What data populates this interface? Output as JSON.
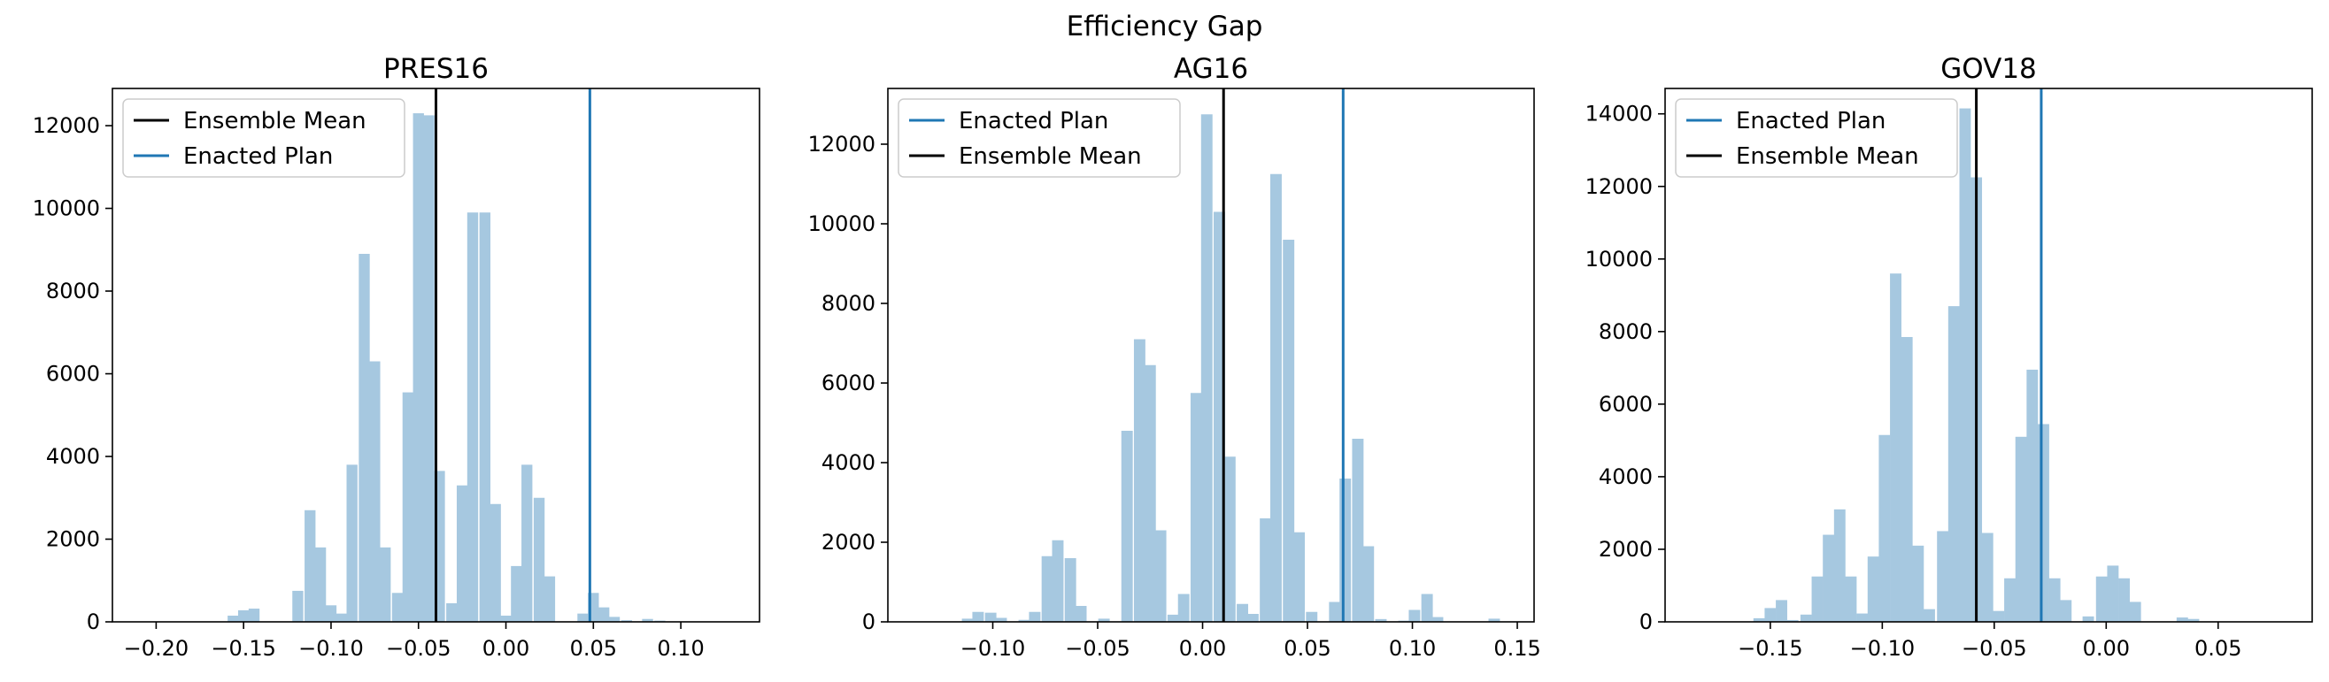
{
  "suptitle": "Efficiency Gap",
  "colors": {
    "hist": "#a6c8e0",
    "enacted": "#1f77b4",
    "mean": "#000000"
  },
  "chart_data": [
    {
      "type": "bar",
      "title": "PRES16",
      "xlim": [
        -0.225,
        0.145
      ],
      "ylim": [
        0,
        12900
      ],
      "xticks": [
        {
          "value": -0.2,
          "label": "−0.20"
        },
        {
          "value": -0.15,
          "label": "−0.15"
        },
        {
          "value": -0.1,
          "label": "−0.10"
        },
        {
          "value": -0.05,
          "label": "−0.05"
        },
        {
          "value": 0.0,
          "label": "0.00"
        },
        {
          "value": 0.05,
          "label": "0.05"
        },
        {
          "value": 0.1,
          "label": "0.10"
        }
      ],
      "yticks": [
        0,
        2000,
        4000,
        6000,
        8000,
        10000,
        12000
      ],
      "legend": [
        "Ensemble Mean",
        "Enacted Plan"
      ],
      "legend_position": "upper left",
      "ensemble_mean": -0.04,
      "enacted": 0.048,
      "bin_width": 0.00625,
      "bins": [
        [
          -0.156,
          150
        ],
        [
          -0.15,
          280
        ],
        [
          -0.144,
          320
        ],
        [
          -0.119,
          750
        ],
        [
          -0.112,
          2700
        ],
        [
          -0.106,
          1800
        ],
        [
          -0.1,
          400
        ],
        [
          -0.094,
          200
        ],
        [
          -0.088,
          3800
        ],
        [
          -0.081,
          8900
        ],
        [
          -0.075,
          6300
        ],
        [
          -0.069,
          1800
        ],
        [
          -0.062,
          700
        ],
        [
          -0.056,
          5550
        ],
        [
          -0.05,
          12300
        ],
        [
          -0.044,
          12250
        ],
        [
          -0.038,
          3650
        ],
        [
          -0.031,
          450
        ],
        [
          -0.025,
          3300
        ],
        [
          -0.019,
          9900
        ],
        [
          -0.012,
          9900
        ],
        [
          -0.006,
          2850
        ],
        [
          0.0,
          150
        ],
        [
          0.006,
          1350
        ],
        [
          0.012,
          3800
        ],
        [
          0.019,
          3000
        ],
        [
          0.025,
          1100
        ],
        [
          0.031,
          0
        ],
        [
          0.044,
          200
        ],
        [
          0.05,
          700
        ],
        [
          0.056,
          350
        ],
        [
          0.062,
          120
        ],
        [
          0.069,
          40
        ],
        [
          0.081,
          70
        ],
        [
          0.088,
          30
        ]
      ]
    },
    {
      "type": "bar",
      "title": "AG16",
      "xlim": [
        -0.15,
        0.158
      ],
      "ylim": [
        0,
        13400
      ],
      "xticks": [
        {
          "value": -0.1,
          "label": "−0.10"
        },
        {
          "value": -0.05,
          "label": "−0.05"
        },
        {
          "value": 0.0,
          "label": "0.00"
        },
        {
          "value": 0.05,
          "label": "0.05"
        },
        {
          "value": 0.1,
          "label": "0.10"
        },
        {
          "value": 0.15,
          "label": "0.15"
        }
      ],
      "yticks": [
        0,
        2000,
        4000,
        6000,
        8000,
        10000,
        12000
      ],
      "legend": [
        "Enacted Plan",
        "Ensemble Mean"
      ],
      "legend_position": "upper left",
      "ensemble_mean": 0.01,
      "enacted": 0.067,
      "bin_width": 0.00545,
      "bins": [
        [
          -0.112,
          80
        ],
        [
          -0.107,
          250
        ],
        [
          -0.101,
          230
        ],
        [
          -0.096,
          100
        ],
        [
          -0.085,
          50
        ],
        [
          -0.08,
          250
        ],
        [
          -0.074,
          1650
        ],
        [
          -0.069,
          2050
        ],
        [
          -0.063,
          1600
        ],
        [
          -0.058,
          400
        ],
        [
          -0.047,
          80
        ],
        [
          -0.036,
          4800
        ],
        [
          -0.03,
          7100
        ],
        [
          -0.025,
          6450
        ],
        [
          -0.02,
          2300
        ],
        [
          -0.014,
          180
        ],
        [
          -0.009,
          700
        ],
        [
          -0.003,
          5750
        ],
        [
          0.002,
          12750
        ],
        [
          0.008,
          10300
        ],
        [
          0.013,
          4150
        ],
        [
          0.019,
          450
        ],
        [
          0.024,
          200
        ],
        [
          0.03,
          2600
        ],
        [
          0.035,
          11250
        ],
        [
          0.041,
          9600
        ],
        [
          0.046,
          2250
        ],
        [
          0.052,
          250
        ],
        [
          0.063,
          500
        ],
        [
          0.068,
          3600
        ],
        [
          0.074,
          4600
        ],
        [
          0.079,
          1900
        ],
        [
          0.085,
          70
        ],
        [
          0.096,
          30
        ],
        [
          0.101,
          300
        ],
        [
          0.107,
          700
        ],
        [
          0.112,
          120
        ],
        [
          0.139,
          80
        ]
      ]
    },
    {
      "type": "bar",
      "title": "GOV18",
      "xlim": [
        -0.197,
        0.092
      ],
      "ylim": [
        0,
        14700
      ],
      "xticks": [
        {
          "value": -0.15,
          "label": "−0.15"
        },
        {
          "value": -0.1,
          "label": "−0.10"
        },
        {
          "value": -0.05,
          "label": "−0.05"
        },
        {
          "value": 0.0,
          "label": "0.00"
        },
        {
          "value": 0.05,
          "label": "0.05"
        }
      ],
      "yticks": [
        0,
        2000,
        4000,
        6000,
        8000,
        10000,
        12000,
        14000
      ],
      "legend": [
        "Enacted Plan",
        "Ensemble Mean"
      ],
      "legend_position": "upper left",
      "ensemble_mean": -0.058,
      "enacted": -0.029,
      "bin_width": 0.0051,
      "bins": [
        [
          -0.155,
          100
        ],
        [
          -0.15,
          380
        ],
        [
          -0.145,
          600
        ],
        [
          -0.14,
          50
        ],
        [
          -0.134,
          200
        ],
        [
          -0.129,
          1250
        ],
        [
          -0.124,
          2400
        ],
        [
          -0.119,
          3100
        ],
        [
          -0.114,
          1250
        ],
        [
          -0.109,
          230
        ],
        [
          -0.104,
          1800
        ],
        [
          -0.099,
          5150
        ],
        [
          -0.094,
          9600
        ],
        [
          -0.089,
          7850
        ],
        [
          -0.084,
          2100
        ],
        [
          -0.079,
          350
        ],
        [
          -0.073,
          2500
        ],
        [
          -0.068,
          8700
        ],
        [
          -0.063,
          14150
        ],
        [
          -0.058,
          12250
        ],
        [
          -0.053,
          2450
        ],
        [
          -0.048,
          300
        ],
        [
          -0.043,
          1200
        ],
        [
          -0.038,
          5100
        ],
        [
          -0.033,
          6950
        ],
        [
          -0.028,
          5450
        ],
        [
          -0.023,
          1200
        ],
        [
          -0.018,
          600
        ],
        [
          -0.008,
          150
        ],
        [
          -0.002,
          1250
        ],
        [
          0.003,
          1550
        ],
        [
          0.008,
          1200
        ],
        [
          0.013,
          550
        ],
        [
          0.034,
          120
        ],
        [
          0.039,
          80
        ]
      ]
    }
  ]
}
